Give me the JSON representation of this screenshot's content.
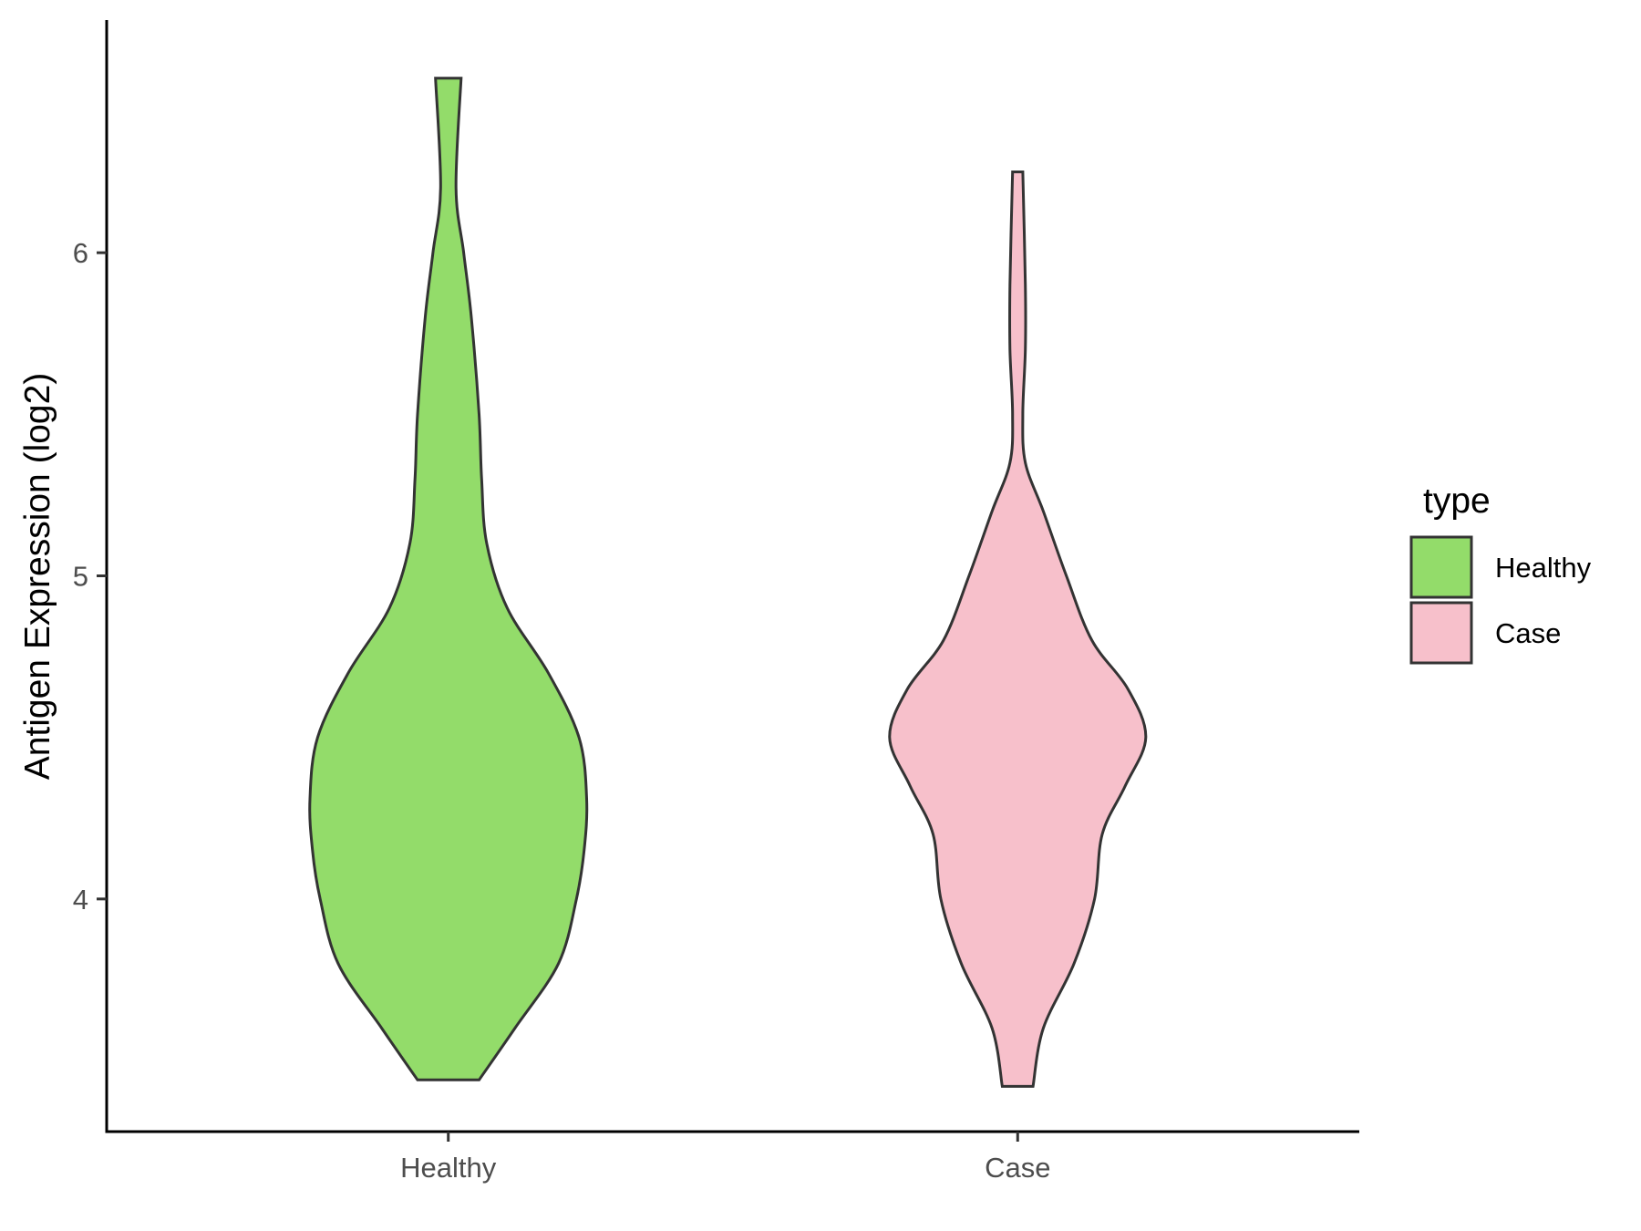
{
  "chart_data": {
    "type": "violin",
    "title": "",
    "xlabel": "",
    "ylabel": "Antigen Expression (log2)",
    "categories": [
      "Healthy",
      "Case"
    ],
    "ylim": [
      3.28,
      6.72
    ],
    "yticks": [
      4,
      5,
      6
    ],
    "grid": false,
    "legend": {
      "title": "type",
      "placement": "right",
      "entries": [
        {
          "label": "Healthy",
          "color": "#93dc6a"
        },
        {
          "label": "Case",
          "color": "#f7c0cb"
        }
      ]
    },
    "series": [
      {
        "category": "Healthy",
        "color": "#93dc6a",
        "y_min": 3.44,
        "y_max": 6.54,
        "density_profile": [
          [
            3.44,
            0.12
          ],
          [
            3.6,
            0.26
          ],
          [
            3.8,
            0.43
          ],
          [
            4.0,
            0.5
          ],
          [
            4.15,
            0.53
          ],
          [
            4.31,
            0.54
          ],
          [
            4.5,
            0.51
          ],
          [
            4.7,
            0.39
          ],
          [
            4.9,
            0.23
          ],
          [
            5.1,
            0.15
          ],
          [
            5.3,
            0.13
          ],
          [
            5.5,
            0.12
          ],
          [
            5.8,
            0.09
          ],
          [
            6.0,
            0.06
          ],
          [
            6.2,
            0.03
          ],
          [
            6.54,
            0.05
          ]
        ]
      },
      {
        "category": "Case",
        "color": "#f7c0cb",
        "y_min": 3.42,
        "y_max": 6.25,
        "density_profile": [
          [
            3.42,
            0.06
          ],
          [
            3.6,
            0.1
          ],
          [
            3.8,
            0.22
          ],
          [
            4.0,
            0.3
          ],
          [
            4.2,
            0.33
          ],
          [
            4.35,
            0.42
          ],
          [
            4.5,
            0.5
          ],
          [
            4.65,
            0.43
          ],
          [
            4.8,
            0.29
          ],
          [
            5.0,
            0.19
          ],
          [
            5.2,
            0.1
          ],
          [
            5.35,
            0.03
          ],
          [
            5.5,
            0.02
          ],
          [
            5.7,
            0.03
          ],
          [
            5.9,
            0.03
          ],
          [
            6.25,
            0.02
          ]
        ]
      }
    ]
  }
}
